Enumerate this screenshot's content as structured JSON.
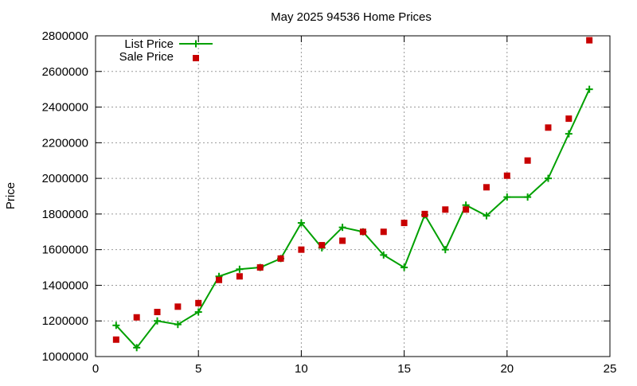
{
  "chart_data": {
    "type": "line",
    "title": "May 2025 94536 Home Prices",
    "xlabel": "",
    "ylabel": "Price",
    "xlim": [
      0,
      25
    ],
    "ylim": [
      1000000,
      2800000
    ],
    "xticks": [
      0,
      5,
      10,
      15,
      20,
      25
    ],
    "yticks": [
      1000000,
      1200000,
      1400000,
      1600000,
      1800000,
      2000000,
      2200000,
      2400000,
      2600000,
      2800000
    ],
    "grid": true,
    "legend_position": "top-left",
    "series": [
      {
        "name": "List Price",
        "style": "line-points",
        "color": "#00a000",
        "marker": "plus",
        "x": [
          1,
          2,
          3,
          4,
          5,
          6,
          7,
          8,
          9,
          10,
          11,
          12,
          13,
          14,
          15,
          16,
          17,
          18,
          19,
          20,
          21,
          22,
          23,
          24
        ],
        "y": [
          1175000,
          1050000,
          1200000,
          1180000,
          1250000,
          1450000,
          1490000,
          1500000,
          1550000,
          1750000,
          1610000,
          1725000,
          1700000,
          1570000,
          1500000,
          1795000,
          1600000,
          1850000,
          1790000,
          1895000,
          1895000,
          2000000,
          2250000,
          2500000
        ]
      },
      {
        "name": "Sale Price",
        "style": "points",
        "color": "#c80000",
        "marker": "square",
        "x": [
          1,
          2,
          3,
          4,
          5,
          6,
          7,
          8,
          9,
          10,
          11,
          12,
          13,
          14,
          15,
          16,
          17,
          18,
          19,
          20,
          21,
          22,
          23,
          24
        ],
        "y": [
          1095000,
          1220000,
          1250000,
          1280000,
          1300000,
          1430000,
          1450000,
          1500000,
          1550000,
          1600000,
          1625000,
          1650000,
          1700000,
          1700000,
          1750000,
          1800000,
          1825000,
          1825000,
          1950000,
          2015000,
          2100000,
          2285000,
          2335000,
          2775000
        ]
      }
    ]
  }
}
